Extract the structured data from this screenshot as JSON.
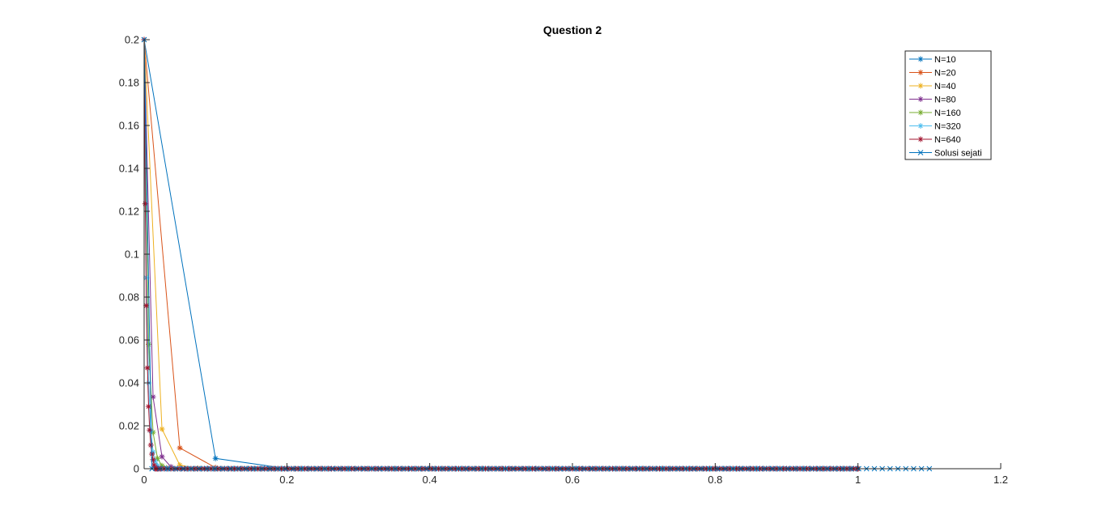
{
  "chart_data": {
    "type": "line",
    "title": "Question 2",
    "xlabel": "",
    "ylabel": "",
    "xlim": [
      0,
      1.2
    ],
    "ylim": [
      0,
      0.2
    ],
    "xticks": [
      "0",
      "0.2",
      "0.4",
      "0.6",
      "0.8",
      "1",
      "1.2"
    ],
    "yticks": [
      "0",
      "0.02",
      "0.04",
      "0.06",
      "0.08",
      "0.1",
      "0.12",
      "0.14",
      "0.16",
      "0.18",
      "0.2"
    ],
    "grid": false,
    "legend_position": "top-right",
    "series": [
      {
        "name": "N=10",
        "color": "#0072BD",
        "marker": "star",
        "n": 10,
        "x_head": [
          0,
          0.1,
          0.2
        ],
        "y_head": [
          0.2,
          0.0048,
          0.0001
        ]
      },
      {
        "name": "N=20",
        "color": "#D95319",
        "marker": "star",
        "n": 20,
        "x_head": [
          0,
          0.05,
          0.1
        ],
        "y_head": [
          0.2,
          0.0097,
          0.0005
        ]
      },
      {
        "name": "N=40",
        "color": "#EDB120",
        "marker": "star",
        "n": 40,
        "x_head": [
          0,
          0.025,
          0.05,
          0.075
        ],
        "y_head": [
          0.2,
          0.0185,
          0.0017,
          0.0002
        ]
      },
      {
        "name": "N=80",
        "color": "#7E2F8E",
        "marker": "star",
        "n": 80,
        "x_head": [
          0,
          0.0125,
          0.025,
          0.0375,
          0.05
        ],
        "y_head": [
          0.2,
          0.0335,
          0.0056,
          0.0009,
          0.0001
        ]
      },
      {
        "name": "N=160",
        "color": "#77AC30",
        "marker": "star",
        "n": 160,
        "x_head": [
          0,
          0.00625,
          0.0125,
          0.01875,
          0.025,
          0.03125
        ],
        "y_head": [
          0.2,
          0.058,
          0.017,
          0.0048,
          0.0014,
          0.0004
        ]
      },
      {
        "name": "N=320",
        "color": "#4DBEEE",
        "marker": "star",
        "n": 320,
        "x_head": [
          0,
          0.003125,
          0.00625,
          0.009375,
          0.0125,
          0.015625,
          0.01875
        ],
        "y_head": [
          0.2,
          0.089,
          0.04,
          0.0176,
          0.0078,
          0.0035,
          0.0015
        ]
      },
      {
        "name": "N=640",
        "color": "#A2142F",
        "marker": "star",
        "n": 640,
        "x_head": [
          0,
          0.0015625,
          0.003125,
          0.0046875,
          0.00625,
          0.0078125,
          0.009375,
          0.0109375,
          0.0125,
          0.015625
        ],
        "y_head": [
          0.2,
          0.1235,
          0.076,
          0.047,
          0.029,
          0.018,
          0.011,
          0.0068,
          0.0042,
          0.0016
        ]
      },
      {
        "name": "Solusi sejati",
        "color": "#0072BD",
        "marker": "x",
        "n": 100,
        "x_end": 1.1,
        "x_head": [
          0,
          0.011,
          0.022,
          0.033
        ],
        "y_head": [
          0.2,
          0.0,
          0.0,
          0.0
        ]
      }
    ]
  }
}
